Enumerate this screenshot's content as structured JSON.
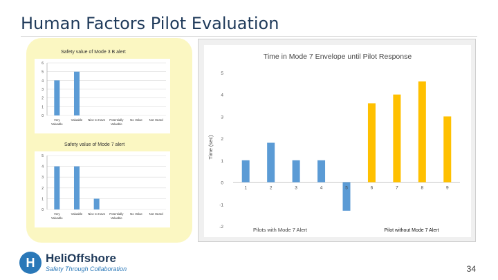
{
  "slide": {
    "title": "Human Factors Pilot Evaluation",
    "page_number": "34"
  },
  "footer": {
    "logo_name": "HeliOffshore",
    "tagline": "Safety Through Collaboration"
  },
  "colors": {
    "blue": "#5b9bd5",
    "gold": "#ffc000",
    "title": "#1f3a5a",
    "panel": "#fbf7c2"
  },
  "chart_data": [
    {
      "type": "bar",
      "title": "Safety value of Mode 3 B alert",
      "categories": [
        "Very Valuable",
        "Valuable",
        "Nice to Have",
        "Potentially Valuable",
        "No Value",
        "Not Heard"
      ],
      "values": [
        4,
        5,
        0,
        0,
        0,
        0
      ],
      "ylim": [
        0,
        6
      ],
      "yticks": [
        "0",
        "1",
        "2",
        "3",
        "4",
        "5",
        "6"
      ],
      "grid": true
    },
    {
      "type": "bar",
      "title": "Safety value of Mode 7 alert",
      "categories": [
        "Very Valuable",
        "Valuable",
        "Nice to Have",
        "Potentially Valuable",
        "No Value",
        "Not Heard"
      ],
      "values": [
        4,
        4,
        1,
        0,
        0,
        0
      ],
      "ylim": [
        0,
        5
      ],
      "yticks": [
        "0",
        "1",
        "2",
        "3",
        "4",
        "5"
      ],
      "grid": true
    },
    {
      "type": "bar",
      "title": "Time in Mode 7 Envelope until Pilot Response",
      "ylabel": "Time (sec)",
      "categories": [
        "1",
        "2",
        "3",
        "4",
        "5",
        "6",
        "7",
        "8",
        "9"
      ],
      "values": [
        1,
        1.8,
        1,
        1,
        -1.3,
        3.6,
        4,
        4.6,
        3
      ],
      "ylim": [
        -2,
        5
      ],
      "yticks": [
        "-2",
        "-1",
        "0",
        "1",
        "2",
        "3",
        "4",
        "5"
      ],
      "grid": false,
      "groups": [
        {
          "name": "Pilots with Mode 7 Alert",
          "color": "#5b9bd5",
          "indices": [
            0,
            1,
            2,
            3,
            4
          ]
        },
        {
          "name": "Pilot without Mode 7 Alert",
          "color": "#ffc000",
          "indices": [
            5,
            6,
            7,
            8
          ]
        }
      ]
    }
  ]
}
